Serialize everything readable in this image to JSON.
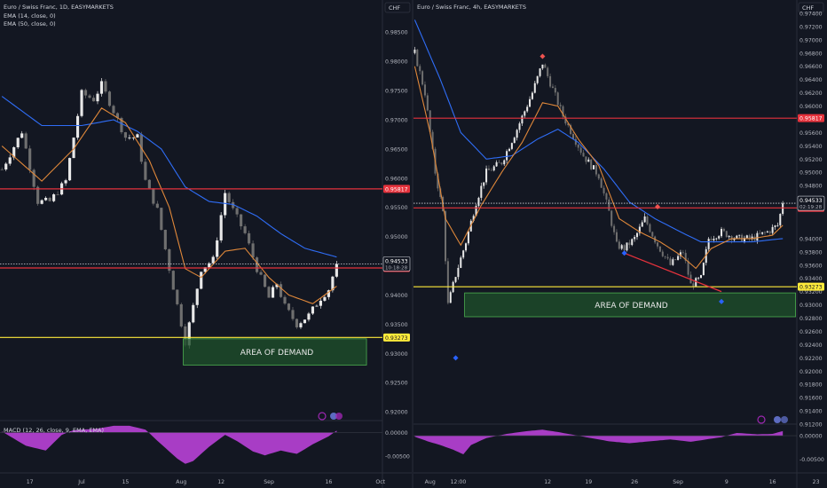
{
  "colors": {
    "background": "#131722",
    "panel_border": "#2a2e39",
    "up_candle": "#e8e8e8",
    "down_candle": "#6f6f6f",
    "ema_fast": "#e0883a",
    "ema_slow": "#2f6df6",
    "resistance": "#e5323c",
    "support": "#ffeb3b",
    "demand_fill": "#1e4d2b",
    "demand_border": "#4caf50",
    "macd_hist": "#b03fcf",
    "tick_text": "#b2b5be",
    "badge_dark": "#363a45"
  },
  "chart_data": [
    {
      "type": "candlestick",
      "title": "Euro / Swiss Franc, 1D, EASYMARKETS",
      "indicators": [
        "EMA (14, close, 0)",
        "EMA (50, close, 0)"
      ],
      "price_axis": {
        "range": [
          0.9185,
          0.9905
        ],
        "ticks": [
          [
            "0.98500",
            0.985
          ],
          [
            "0.98000",
            0.98
          ],
          [
            "0.97500",
            0.975
          ],
          [
            "0.97000",
            0.97
          ],
          [
            "0.96500",
            0.965
          ],
          [
            "0.96000",
            0.96
          ],
          [
            "0.95500",
            0.955
          ],
          [
            "0.95000",
            0.95
          ],
          [
            "0.94000",
            0.94
          ],
          [
            "0.93500",
            0.935
          ],
          [
            "0.93000",
            0.93
          ],
          [
            "0.92500",
            0.925
          ],
          [
            "0.92000",
            0.92
          ]
        ]
      },
      "x_axis": {
        "bars": 96,
        "ticks": [
          [
            "17",
            7
          ],
          [
            "Jul",
            20
          ],
          [
            "15",
            31
          ],
          [
            "Aug",
            45
          ],
          [
            "12",
            55
          ],
          [
            "Sep",
            67
          ],
          [
            "16",
            82
          ],
          [
            "Oct",
            95
          ]
        ]
      },
      "ohlc_path": [
        [
          0,
          0.9615
        ],
        [
          5,
          0.968
        ],
        [
          9,
          0.956
        ],
        [
          12,
          0.956
        ],
        [
          16,
          0.9595
        ],
        [
          20,
          0.9745
        ],
        [
          23,
          0.9735
        ],
        [
          25,
          0.976
        ],
        [
          28,
          0.9715
        ],
        [
          31,
          0.967
        ],
        [
          34,
          0.967
        ],
        [
          36,
          0.9595
        ],
        [
          39,
          0.9545
        ],
        [
          42,
          0.9445
        ],
        [
          46,
          0.932
        ],
        [
          48,
          0.938
        ],
        [
          50,
          0.9445
        ],
        [
          53,
          0.946
        ],
        [
          56,
          0.9575
        ],
        [
          58,
          0.9545
        ],
        [
          61,
          0.9505
        ],
        [
          64,
          0.9445
        ],
        [
          67,
          0.9395
        ],
        [
          69,
          0.942
        ],
        [
          71,
          0.938
        ],
        [
          74,
          0.935
        ],
        [
          77,
          0.9365
        ],
        [
          80,
          0.9395
        ],
        [
          82,
          0.941
        ],
        [
          84,
          0.9453
        ]
      ],
      "ema14_path": [
        [
          0,
          0.9655
        ],
        [
          10,
          0.9595
        ],
        [
          18,
          0.965
        ],
        [
          25,
          0.972
        ],
        [
          31,
          0.9695
        ],
        [
          37,
          0.963
        ],
        [
          42,
          0.955
        ],
        [
          46,
          0.9445
        ],
        [
          50,
          0.943
        ],
        [
          56,
          0.9475
        ],
        [
          61,
          0.948
        ],
        [
          67,
          0.943
        ],
        [
          72,
          0.94
        ],
        [
          78,
          0.9385
        ],
        [
          84,
          0.9415
        ]
      ],
      "ema50_path": [
        [
          0,
          0.974
        ],
        [
          10,
          0.969
        ],
        [
          20,
          0.969
        ],
        [
          28,
          0.97
        ],
        [
          34,
          0.968
        ],
        [
          40,
          0.965
        ],
        [
          46,
          0.9585
        ],
        [
          52,
          0.956
        ],
        [
          58,
          0.9555
        ],
        [
          64,
          0.9535
        ],
        [
          70,
          0.9505
        ],
        [
          76,
          0.948
        ],
        [
          84,
          0.9465
        ]
      ],
      "levels": [
        {
          "label": "0.95817",
          "value": 0.95817,
          "kind": "resistance"
        },
        {
          "label": "0.94463",
          "value": 0.94463,
          "kind": "resistance"
        },
        {
          "label": "0.93273",
          "value": 0.93273,
          "kind": "support"
        }
      ],
      "last_price": {
        "label": "0.94533",
        "value": 0.94533,
        "countdown": "10:18:28"
      },
      "demand_zone": {
        "label": "AREA OF DEMAND",
        "top": 0.9325,
        "bottom": 0.928,
        "from_bar": 46,
        "to_bar": 92
      },
      "macd": {
        "title": "MACD (12, 26, close, 9, EMA, EMA)",
        "range": [
          -0.0085,
          0.0025
        ],
        "ticks": [
          [
            "0.00000",
            0.0
          ],
          [
            "-0.00500",
            -0.005
          ]
        ],
        "hist_path": [
          [
            0,
            0.0002
          ],
          [
            6,
            -0.0028
          ],
          [
            11,
            -0.0038
          ],
          [
            15,
            -0.0005
          ],
          [
            18,
            0.0005
          ],
          [
            24,
            0.0008
          ],
          [
            28,
            0.0014
          ],
          [
            32,
            0.0014
          ],
          [
            36,
            0.0006
          ],
          [
            40,
            -0.0025
          ],
          [
            44,
            -0.0055
          ],
          [
            46,
            -0.0066
          ],
          [
            48,
            -0.006
          ],
          [
            52,
            -0.003
          ],
          [
            56,
            -0.0005
          ],
          [
            59,
            -0.0018
          ],
          [
            63,
            -0.004
          ],
          [
            66,
            -0.0048
          ],
          [
            70,
            -0.0038
          ],
          [
            74,
            -0.0045
          ],
          [
            78,
            -0.0025
          ],
          [
            82,
            -0.0008
          ],
          [
            84,
            0.0004
          ]
        ]
      }
    },
    {
      "type": "candlestick",
      "title": "Euro / Swiss Franc, 4h, EASYMARKETS",
      "price_axis": {
        "range": [
          0.912,
          0.976
        ],
        "ticks": [
          [
            "0.97400",
            0.974
          ],
          [
            "0.97200",
            0.972
          ],
          [
            "0.97000",
            0.97
          ],
          [
            "0.96800",
            0.968
          ],
          [
            "0.96600",
            0.966
          ],
          [
            "0.96400",
            0.964
          ],
          [
            "0.96200",
            0.962
          ],
          [
            "0.96000",
            0.96
          ],
          [
            "0.95600",
            0.956
          ],
          [
            "0.95400",
            0.954
          ],
          [
            "0.95200",
            0.952
          ],
          [
            "0.95000",
            0.95
          ],
          [
            "0.94800",
            0.948
          ],
          [
            "0.94600",
            0.946
          ],
          [
            "0.94000",
            0.94
          ],
          [
            "0.93800",
            0.938
          ],
          [
            "0.93600",
            0.936
          ],
          [
            "0.93400",
            0.934
          ],
          [
            "0.93200",
            0.932
          ],
          [
            "0.93000",
            0.93
          ],
          [
            "0.92800",
            0.928
          ],
          [
            "0.92600",
            0.926
          ],
          [
            "0.92400",
            0.924
          ],
          [
            "0.92200",
            0.922
          ],
          [
            "0.92000",
            0.92
          ],
          [
            "0.91800",
            0.918
          ],
          [
            "0.91600",
            0.916
          ],
          [
            "0.91400",
            0.914
          ],
          [
            "0.91200",
            0.912
          ]
        ]
      },
      "x_axis": {
        "bars": 150,
        "ticks": [
          [
            "Aug",
            6
          ],
          [
            "12:00",
            17
          ],
          [
            "12",
            52
          ],
          [
            "19",
            68
          ],
          [
            "26",
            86
          ],
          [
            "Sep",
            103
          ],
          [
            "9",
            122
          ],
          [
            "16",
            140
          ],
          [
            "23",
            157
          ]
        ]
      },
      "ohlc_path": [
        [
          0,
          0.968
        ],
        [
          4,
          0.962
        ],
        [
          8,
          0.95
        ],
        [
          11,
          0.944
        ],
        [
          13,
          0.93
        ],
        [
          16,
          0.9345
        ],
        [
          20,
          0.9395
        ],
        [
          24,
          0.9455
        ],
        [
          28,
          0.95
        ],
        [
          34,
          0.9515
        ],
        [
          40,
          0.9565
        ],
        [
          46,
          0.962
        ],
        [
          50,
          0.9665
        ],
        [
          54,
          0.9625
        ],
        [
          58,
          0.9585
        ],
        [
          62,
          0.9555
        ],
        [
          66,
          0.9525
        ],
        [
          72,
          0.9495
        ],
        [
          76,
          0.944
        ],
        [
          79,
          0.939
        ],
        [
          82,
          0.9385
        ],
        [
          86,
          0.94
        ],
        [
          90,
          0.943
        ],
        [
          95,
          0.939
        ],
        [
          100,
          0.936
        ],
        [
          105,
          0.938
        ],
        [
          108,
          0.933
        ],
        [
          112,
          0.934
        ],
        [
          115,
          0.94
        ],
        [
          120,
          0.941
        ],
        [
          126,
          0.94
        ],
        [
          132,
          0.94
        ],
        [
          138,
          0.941
        ],
        [
          142,
          0.942
        ],
        [
          144,
          0.9453
        ]
      ],
      "ema14_path": [
        [
          0,
          0.966
        ],
        [
          6,
          0.956
        ],
        [
          12,
          0.943
        ],
        [
          18,
          0.939
        ],
        [
          26,
          0.945
        ],
        [
          34,
          0.95
        ],
        [
          42,
          0.9545
        ],
        [
          50,
          0.9605
        ],
        [
          56,
          0.96
        ],
        [
          64,
          0.955
        ],
        [
          72,
          0.951
        ],
        [
          80,
          0.943
        ],
        [
          88,
          0.941
        ],
        [
          96,
          0.9395
        ],
        [
          104,
          0.9375
        ],
        [
          110,
          0.9355
        ],
        [
          116,
          0.9385
        ],
        [
          124,
          0.94
        ],
        [
          132,
          0.94
        ],
        [
          140,
          0.9405
        ],
        [
          144,
          0.942
        ]
      ],
      "ema50_path": [
        [
          0,
          0.973
        ],
        [
          10,
          0.964
        ],
        [
          18,
          0.956
        ],
        [
          28,
          0.952
        ],
        [
          38,
          0.9525
        ],
        [
          48,
          0.955
        ],
        [
          56,
          0.9565
        ],
        [
          64,
          0.9545
        ],
        [
          74,
          0.9505
        ],
        [
          84,
          0.9455
        ],
        [
          94,
          0.943
        ],
        [
          104,
          0.941
        ],
        [
          112,
          0.9395
        ],
        [
          122,
          0.9395
        ],
        [
          132,
          0.9395
        ],
        [
          144,
          0.94
        ]
      ],
      "levels": [
        {
          "label": "0.95817",
          "value": 0.95817,
          "kind": "resistance"
        },
        {
          "label": "0.94463",
          "value": 0.94463,
          "kind": "resistance"
        },
        {
          "label": "0.93273",
          "value": 0.93273,
          "kind": "support"
        }
      ],
      "last_price": {
        "label": "0.94533",
        "value": 0.94533,
        "countdown": "02:19:28"
      },
      "demand_zone": {
        "label": "AREA OF DEMAND",
        "top": 0.9318,
        "bottom": 0.9282,
        "from_bar": 20,
        "to_bar": 150
      },
      "markers": [
        {
          "bar": 16,
          "value": 0.922,
          "kind": "low"
        },
        {
          "bar": 50,
          "value": 0.9675,
          "kind": "high"
        },
        {
          "bar": 82,
          "value": 0.9378,
          "kind": "low"
        },
        {
          "bar": 95,
          "value": 0.9448,
          "kind": "high"
        },
        {
          "bar": 120,
          "value": 0.9305,
          "kind": "low"
        }
      ],
      "trendline": {
        "from": [
          82,
          0.9378
        ],
        "to": [
          120,
          0.932
        ]
      },
      "macd": {
        "range": [
          -0.008,
          0.0025
        ],
        "ticks": [
          [
            "0.00000",
            0.0
          ],
          [
            "-0.00500",
            -0.005
          ]
        ],
        "hist_path": [
          [
            0,
            -0.0002
          ],
          [
            5,
            -0.0012
          ],
          [
            10,
            -0.002
          ],
          [
            15,
            -0.003
          ],
          [
            19,
            -0.004
          ],
          [
            22,
            -0.002
          ],
          [
            28,
            -0.0005
          ],
          [
            36,
            0.0004
          ],
          [
            44,
            0.001
          ],
          [
            50,
            0.0013
          ],
          [
            56,
            0.0008
          ],
          [
            62,
            0.0002
          ],
          [
            68,
            -0.0004
          ],
          [
            76,
            -0.0012
          ],
          [
            84,
            -0.0016
          ],
          [
            92,
            -0.0012
          ],
          [
            100,
            -0.0008
          ],
          [
            108,
            -0.0013
          ],
          [
            114,
            -0.0008
          ],
          [
            120,
            -0.0003
          ],
          [
            126,
            0.0006
          ],
          [
            134,
            0.0003
          ],
          [
            140,
            0.0004
          ],
          [
            144,
            0.001
          ]
        ]
      }
    }
  ]
}
